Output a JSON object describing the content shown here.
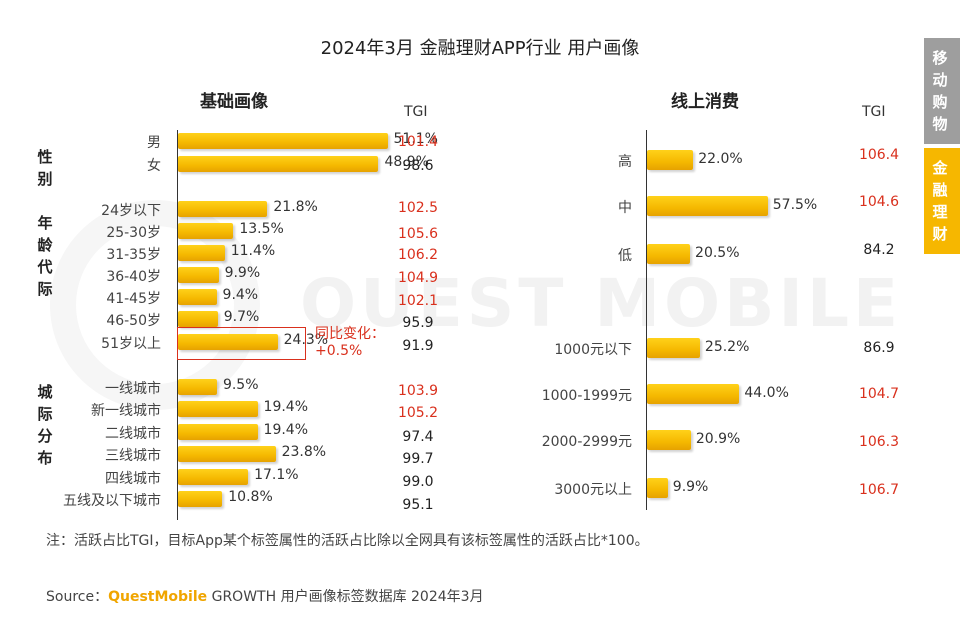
{
  "title": "2024年3月 金融理财APP行业 用户画像",
  "tabs": [
    {
      "label": "移动购物",
      "active": false
    },
    {
      "label": "金融理财",
      "active": true
    }
  ],
  "watermark": "QUEST MOBILE",
  "colors": {
    "bar": "#f5b800",
    "tgi_high": "#d9301d",
    "tgi_normal": "#222222"
  },
  "chart_data": [
    {
      "type": "bar",
      "orientation": "horizontal",
      "title": "基础画像",
      "tgi_header": "TGI",
      "unit": "%",
      "groups": [
        {
          "name": "性别",
          "categories": [
            "男",
            "女"
          ],
          "values": [
            51.1,
            48.9
          ],
          "labels": [
            "51.1%",
            "48.9%"
          ],
          "tgi": [
            "101.4",
            "98.6"
          ]
        },
        {
          "name": "年龄代际",
          "categories": [
            "24岁以下",
            "25-30岁",
            "31-35岁",
            "36-40岁",
            "41-45岁",
            "46-50岁",
            "51岁以上"
          ],
          "values": [
            21.8,
            13.5,
            11.4,
            9.9,
            9.4,
            9.7,
            24.3
          ],
          "labels": [
            "21.8%",
            "13.5%",
            "11.4%",
            "9.9%",
            "9.4%",
            "9.7%",
            "24.3%"
          ],
          "tgi": [
            "102.5",
            "105.6",
            "106.2",
            "104.9",
            "102.1",
            "95.9",
            "91.9"
          ]
        },
        {
          "name": "城际分布",
          "categories": [
            "一线城市",
            "新一线城市",
            "二线城市",
            "三线城市",
            "四线城市",
            "五线及以下城市"
          ],
          "values": [
            9.5,
            19.4,
            19.4,
            23.8,
            17.1,
            10.8
          ],
          "labels": [
            "9.5%",
            "19.4%",
            "19.4%",
            "23.8%",
            "17.1%",
            "10.8%"
          ],
          "tgi": [
            "103.9",
            "105.2",
            "97.4",
            "99.7",
            "99.0",
            "95.1"
          ]
        }
      ],
      "annotation": {
        "target": "51岁以上",
        "text": "同比变化：\n+0.5%"
      }
    },
    {
      "type": "bar",
      "orientation": "horizontal",
      "title": "线上消费",
      "tgi_header": "TGI",
      "unit": "%",
      "groups": [
        {
          "name": "",
          "categories": [
            "高",
            "中",
            "低"
          ],
          "values": [
            22.0,
            57.5,
            20.5
          ],
          "labels": [
            "22.0%",
            "57.5%",
            "20.5%"
          ],
          "tgi": [
            "106.4",
            "104.6",
            "84.2"
          ]
        },
        {
          "name": "",
          "categories": [
            "1000元以下",
            "1000-1999元",
            "2000-2999元",
            "3000元以上"
          ],
          "values": [
            25.2,
            44.0,
            20.9,
            9.9
          ],
          "labels": [
            "25.2%",
            "44.0%",
            "20.9%",
            "9.9%"
          ],
          "tgi": [
            "86.9",
            "104.7",
            "106.3",
            "106.7"
          ]
        }
      ]
    }
  ],
  "note": "注：活跃占比TGI，目标App某个标签属性的活跃占比除以全网具有该标签属性的活跃占比*100。",
  "source": {
    "prefix": "Source：",
    "brand": "QuestMobile",
    "text": "GROWTH 用户画像标签数据库 2024年3月"
  }
}
